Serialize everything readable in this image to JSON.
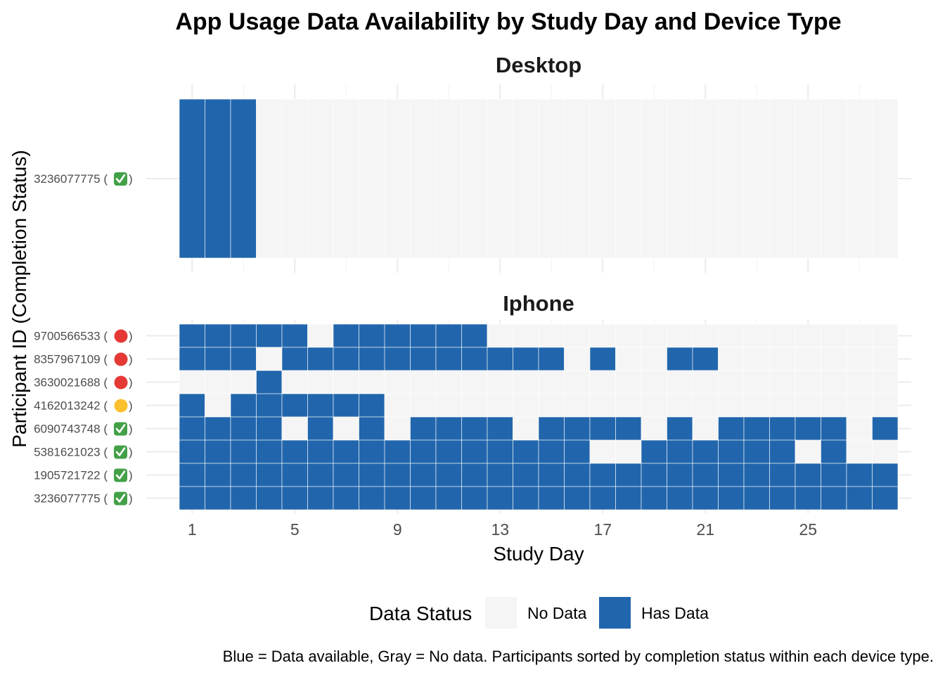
{
  "chart_data": {
    "type": "heatmap",
    "title": "App Usage Data Availability by Study Day and Device Type",
    "xlabel": "Study Day",
    "ylabel": "Participant ID (Completion Status)",
    "x_ticks": [
      1,
      5,
      9,
      13,
      17,
      21,
      25
    ],
    "x_range": [
      1,
      28
    ],
    "legend": {
      "title": "Data Status",
      "position": "bottom",
      "entries": [
        {
          "label": "No Data",
          "color": "#f5f5f5"
        },
        {
          "label": "Has Data",
          "color": "#2166ac"
        }
      ]
    },
    "caption": "Blue = Data available, Gray = No data. Participants sorted by completion status within each device type.",
    "status_icons": {
      "complete": {
        "color": "#43a047",
        "glyph": "✓"
      },
      "partial": {
        "color": "#fbc02d",
        "glyph": ""
      },
      "incomplete": {
        "color": "#e53935",
        "glyph": ""
      }
    },
    "facets": [
      {
        "name": "Desktop",
        "rows": [
          {
            "id": "3236077775",
            "status": "complete",
            "days_with_data": [
              1,
              2,
              3
            ]
          }
        ]
      },
      {
        "name": "Iphone",
        "rows": [
          {
            "id": "9700566533",
            "status": "incomplete",
            "days_with_data": [
              1,
              2,
              3,
              4,
              5,
              7,
              8,
              9,
              10,
              11,
              12
            ]
          },
          {
            "id": "8357967109",
            "status": "incomplete",
            "days_with_data": [
              1,
              2,
              3,
              5,
              6,
              7,
              8,
              9,
              10,
              11,
              12,
              13,
              14,
              15,
              17,
              20,
              21
            ]
          },
          {
            "id": "3630021688",
            "status": "incomplete",
            "days_with_data": [
              4
            ]
          },
          {
            "id": "4162013242",
            "status": "partial",
            "days_with_data": [
              1,
              3,
              4,
              5,
              6,
              7,
              8
            ]
          },
          {
            "id": "6090743748",
            "status": "complete",
            "days_with_data": [
              1,
              2,
              3,
              4,
              6,
              8,
              10,
              11,
              12,
              13,
              15,
              16,
              17,
              18,
              20,
              22,
              23,
              24,
              25,
              26,
              28
            ]
          },
          {
            "id": "5381621023",
            "status": "complete",
            "days_with_data": [
              1,
              2,
              3,
              4,
              5,
              6,
              7,
              8,
              9,
              10,
              11,
              12,
              13,
              14,
              15,
              16,
              19,
              20,
              21,
              22,
              23,
              24,
              26
            ]
          },
          {
            "id": "1905721722",
            "status": "complete",
            "days_with_data": [
              1,
              2,
              3,
              4,
              5,
              6,
              7,
              8,
              9,
              10,
              11,
              12,
              13,
              14,
              15,
              16,
              17,
              18,
              19,
              20,
              21,
              22,
              23,
              24,
              25,
              26,
              27,
              28
            ]
          },
          {
            "id": "3236077775",
            "status": "complete",
            "days_with_data": [
              1,
              2,
              3,
              4,
              5,
              6,
              7,
              8,
              9,
              10,
              11,
              12,
              13,
              14,
              15,
              16,
              17,
              18,
              19,
              20,
              21,
              22,
              23,
              24,
              25,
              26,
              27,
              28
            ]
          }
        ]
      }
    ]
  }
}
